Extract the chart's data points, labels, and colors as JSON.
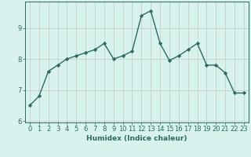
{
  "x": [
    0,
    1,
    2,
    3,
    4,
    5,
    6,
    7,
    8,
    9,
    10,
    11,
    12,
    13,
    14,
    15,
    16,
    17,
    18,
    19,
    20,
    21,
    22,
    23
  ],
  "y": [
    6.5,
    6.8,
    7.6,
    7.8,
    8.0,
    8.1,
    8.2,
    8.3,
    8.5,
    8.0,
    8.1,
    8.25,
    9.4,
    9.55,
    8.5,
    7.95,
    8.1,
    8.3,
    8.5,
    7.8,
    7.8,
    7.55,
    6.9,
    6.9
  ],
  "line_color": "#2d6b62",
  "marker": "D",
  "marker_size": 2.2,
  "line_width": 1.0,
  "bg_color": "#d8f2ee",
  "grid_color": "#c8cfc8",
  "axis_color": "#2d6b62",
  "xlabel": "Humidex (Indice chaleur)",
  "xlim": [
    -0.5,
    23.5
  ],
  "ylim": [
    5.95,
    9.85
  ],
  "yticks": [
    6,
    7,
    8,
    9
  ],
  "xticks": [
    0,
    1,
    2,
    3,
    4,
    5,
    6,
    7,
    8,
    9,
    10,
    11,
    12,
    13,
    14,
    15,
    16,
    17,
    18,
    19,
    20,
    21,
    22,
    23
  ],
  "font_size_label": 6.5,
  "font_size_tick": 6.0
}
